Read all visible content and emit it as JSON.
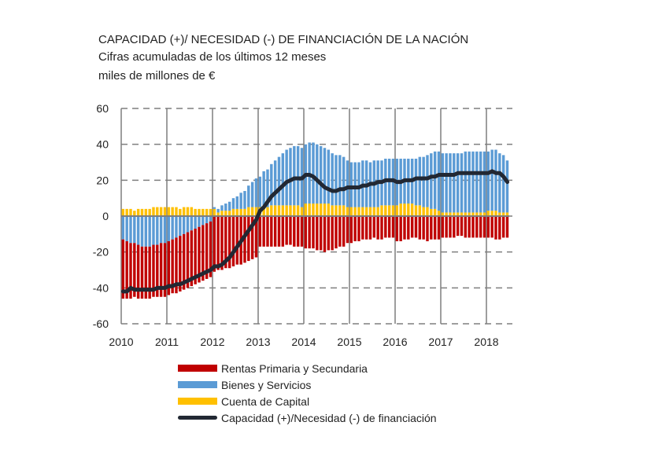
{
  "chart_data": {
    "type": "bar",
    "title": "CAPACIDAD (+)/ NECESIDAD  (-) DE FINANCIACIÓN  DE LA NACIÓN",
    "subtitle": "Cifras acumuladas de los últimos 12 meses",
    "ylabel": "miles de millones de €",
    "xlabel": "",
    "ylim": [
      -60,
      60
    ],
    "yticks": [
      "60",
      "40",
      "20",
      "0",
      "-20",
      "-40",
      "-60"
    ],
    "ytick_values": [
      60,
      40,
      20,
      0,
      -20,
      -40,
      -60
    ],
    "xticks": [
      "2010",
      "2011",
      "2012",
      "2013",
      "2014",
      "2015",
      "2016",
      "2017",
      "2018"
    ],
    "frequency": "monthly, Jan 2010 - Jun 2018",
    "grid": true,
    "legend_placement": "bottom",
    "colors": {
      "rentas": "#c00000",
      "bienes": "#5b9bd5",
      "capital": "#ffc000",
      "line": "#222833"
    },
    "series": [
      {
        "name": "Rentas Primaria y Secundaria",
        "kind": "bar",
        "values": [
          -33,
          -32,
          -31,
          -30,
          -30,
          -29,
          -29,
          -29,
          -29,
          -29,
          -30,
          -30,
          -30,
          -30,
          -31,
          -31,
          -31,
          -31,
          -31,
          -31,
          -31,
          -31,
          -31,
          -31,
          -31,
          -30,
          -30,
          -29,
          -29,
          -28,
          -27,
          -27,
          -26,
          -25,
          -24,
          -23,
          -17,
          -17,
          -17,
          -17,
          -17,
          -17,
          -17,
          -16,
          -16,
          -17,
          -17,
          -17,
          -18,
          -18,
          -18,
          -19,
          -19,
          -20,
          -19,
          -19,
          -18,
          -17,
          -17,
          -15,
          -15,
          -14,
          -14,
          -13,
          -13,
          -13,
          -12,
          -13,
          -13,
          -12,
          -12,
          -12,
          -14,
          -14,
          -13,
          -13,
          -12,
          -12,
          -13,
          -13,
          -14,
          -13,
          -13,
          -13,
          -12,
          -12,
          -12,
          -12,
          -11,
          -11,
          -12,
          -12,
          -12,
          -12,
          -12,
          -12,
          -12,
          -12,
          -13,
          -13,
          -12,
          -12
        ]
      },
      {
        "name": "Bienes y Servicios",
        "kind": "bar",
        "values": [
          -13,
          -14,
          -15,
          -15,
          -16,
          -17,
          -17,
          -17,
          -16,
          -16,
          -15,
          -15,
          -14,
          -13,
          -12,
          -11,
          -10,
          -9,
          -8,
          -7,
          -6,
          -5,
          -4,
          -3,
          1,
          2,
          3,
          4,
          5,
          6,
          7,
          9,
          10,
          12,
          14,
          16,
          17,
          19,
          21,
          23,
          25,
          27,
          29,
          31,
          32,
          33,
          33,
          33,
          33,
          34,
          34,
          33,
          32,
          31,
          30,
          29,
          28,
          28,
          27,
          26,
          25,
          25,
          25,
          26,
          26,
          25,
          26,
          26,
          25,
          26,
          26,
          26,
          26,
          25,
          25,
          25,
          25,
          26,
          27,
          28,
          29,
          31,
          32,
          33,
          33,
          33,
          33,
          33,
          33,
          33,
          34,
          34,
          34,
          34,
          34,
          34,
          33,
          34,
          34,
          33,
          32,
          29
        ]
      },
      {
        "name": "Cuenta de Capital",
        "kind": "bar",
        "values": [
          4,
          4,
          4,
          3,
          4,
          4,
          4,
          4,
          5,
          5,
          5,
          5,
          5,
          5,
          5,
          4,
          5,
          5,
          5,
          4,
          4,
          4,
          4,
          4,
          4,
          2,
          3,
          3,
          3,
          4,
          4,
          4,
          4,
          5,
          5,
          5,
          5,
          6,
          5,
          6,
          6,
          6,
          6,
          6,
          6,
          6,
          6,
          5,
          7,
          7,
          7,
          7,
          7,
          7,
          7,
          6,
          6,
          6,
          6,
          5,
          5,
          5,
          5,
          5,
          5,
          5,
          5,
          5,
          6,
          6,
          6,
          6,
          6,
          7,
          7,
          7,
          7,
          6,
          6,
          5,
          5,
          4,
          4,
          3,
          2,
          2,
          2,
          2,
          2,
          2,
          2,
          2,
          2,
          2,
          2,
          2,
          3,
          3,
          3,
          2,
          2,
          2
        ]
      },
      {
        "name": "Capacidad (+)/Necesidad (-) de financiación",
        "kind": "line",
        "values": [
          -42,
          -42,
          -40,
          -41,
          -41,
          -41,
          -41,
          -41,
          -41,
          -40,
          -40,
          -40,
          -39,
          -39,
          -38,
          -38,
          -37,
          -36,
          -35,
          -34,
          -33,
          -32,
          -31,
          -30,
          -28,
          -28,
          -27,
          -25,
          -23,
          -20,
          -17,
          -14,
          -11,
          -8,
          -5,
          -2,
          3,
          5,
          8,
          11,
          13,
          15,
          17,
          19,
          20,
          21,
          21,
          21,
          23,
          23,
          22,
          20,
          18,
          16,
          15,
          14,
          14,
          15,
          15,
          16,
          16,
          16,
          16,
          17,
          17,
          18,
          18,
          19,
          19,
          20,
          20,
          20,
          19,
          19,
          20,
          20,
          20,
          21,
          21,
          21,
          21,
          22,
          22,
          23,
          23,
          23,
          23,
          23,
          24,
          24,
          24,
          24,
          24,
          24,
          24,
          24,
          24,
          25,
          24,
          24,
          22,
          19
        ]
      }
    ]
  }
}
